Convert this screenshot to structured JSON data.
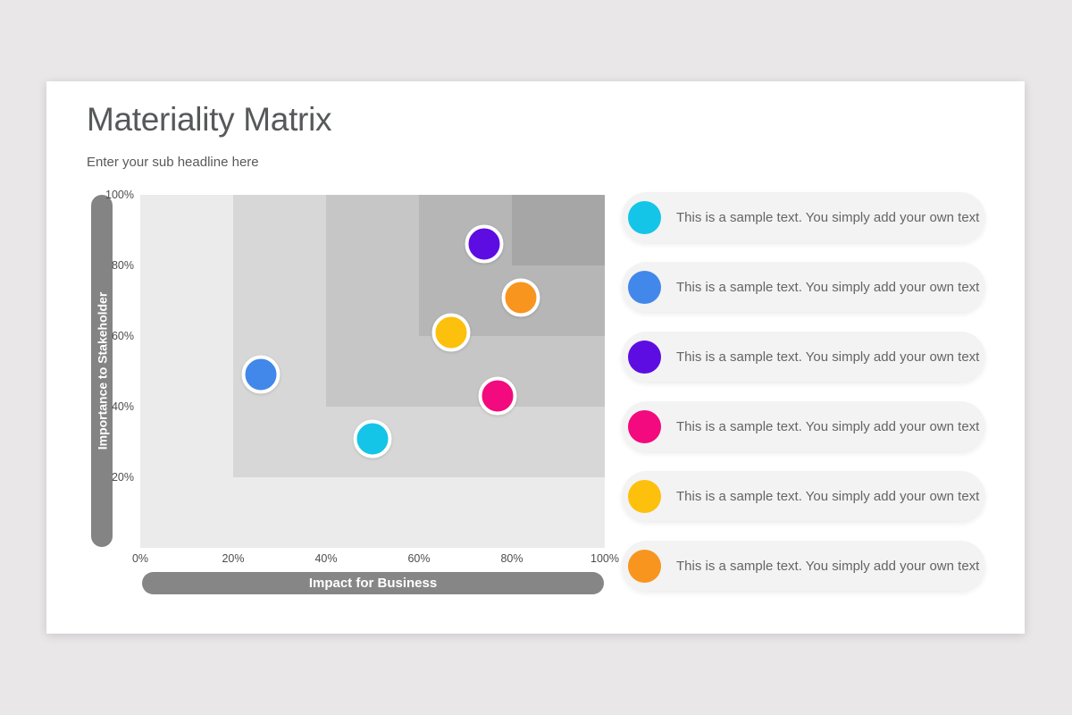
{
  "page": {
    "background": "#e9e7e8"
  },
  "slide": {
    "title": "Materiality Matrix",
    "subtitle": "Enter your sub headline here"
  },
  "chart_data": {
    "type": "scatter",
    "title": "Materiality Matrix",
    "xlabel": "Impact for Business",
    "ylabel": "Importance to Stakeholder",
    "xlim": [
      0,
      100
    ],
    "ylim": [
      0,
      100
    ],
    "grid": false,
    "legend_position": "right",
    "x_ticks": [
      {
        "value": 0,
        "label": "0%"
      },
      {
        "value": 20,
        "label": "20%"
      },
      {
        "value": 40,
        "label": "40%"
      },
      {
        "value": 60,
        "label": "60%"
      },
      {
        "value": 80,
        "label": "80%"
      },
      {
        "value": 100,
        "label": "100%"
      }
    ],
    "y_ticks": [
      {
        "value": 100,
        "label": "100%"
      },
      {
        "value": 80,
        "label": "80%"
      },
      {
        "value": 60,
        "label": "60%"
      },
      {
        "value": 40,
        "label": "40%"
      },
      {
        "value": 20,
        "label": "20%"
      }
    ],
    "quadrant_layers": [
      {
        "x_start": 0,
        "y_start": 0,
        "color": "#ebebeb"
      },
      {
        "x_start": 20,
        "y_start": 20,
        "color": "#d7d7d7"
      },
      {
        "x_start": 40,
        "y_start": 40,
        "color": "#c6c6c6"
      },
      {
        "x_start": 60,
        "y_start": 60,
        "color": "#b6b6b6"
      },
      {
        "x_start": 80,
        "y_start": 80,
        "color": "#a6a6a6"
      }
    ],
    "points": [
      {
        "name": "cyan-point",
        "color": "#14c5e8",
        "x": 50,
        "y": 31
      },
      {
        "name": "blue-point",
        "color": "#4288ea",
        "x": 26,
        "y": 49
      },
      {
        "name": "purple-point",
        "color": "#5d0de2",
        "x": 74,
        "y": 86
      },
      {
        "name": "pink-point",
        "color": "#f20a7e",
        "x": 77,
        "y": 43
      },
      {
        "name": "yellow-point",
        "color": "#fcc00d",
        "x": 67,
        "y": 61
      },
      {
        "name": "orange-point",
        "color": "#f8951f",
        "x": 82,
        "y": 71
      }
    ]
  },
  "legend": {
    "items": [
      {
        "name": "cyan",
        "color": "#14c5e8",
        "text": "This is a sample text. You simply add your own text"
      },
      {
        "name": "blue",
        "color": "#4288ea",
        "text": "This is a sample text. You simply add your own text"
      },
      {
        "name": "purple",
        "color": "#5d0de2",
        "text": "This is a sample text. You simply add your own text"
      },
      {
        "name": "pink",
        "color": "#f20a7e",
        "text": "This is a sample text. You simply add your own text"
      },
      {
        "name": "yellow",
        "color": "#fcc00d",
        "text": "This is a sample text. You simply add your own text"
      },
      {
        "name": "orange",
        "color": "#f8951f",
        "text": "This is a sample text. You simply add your own text"
      }
    ]
  }
}
